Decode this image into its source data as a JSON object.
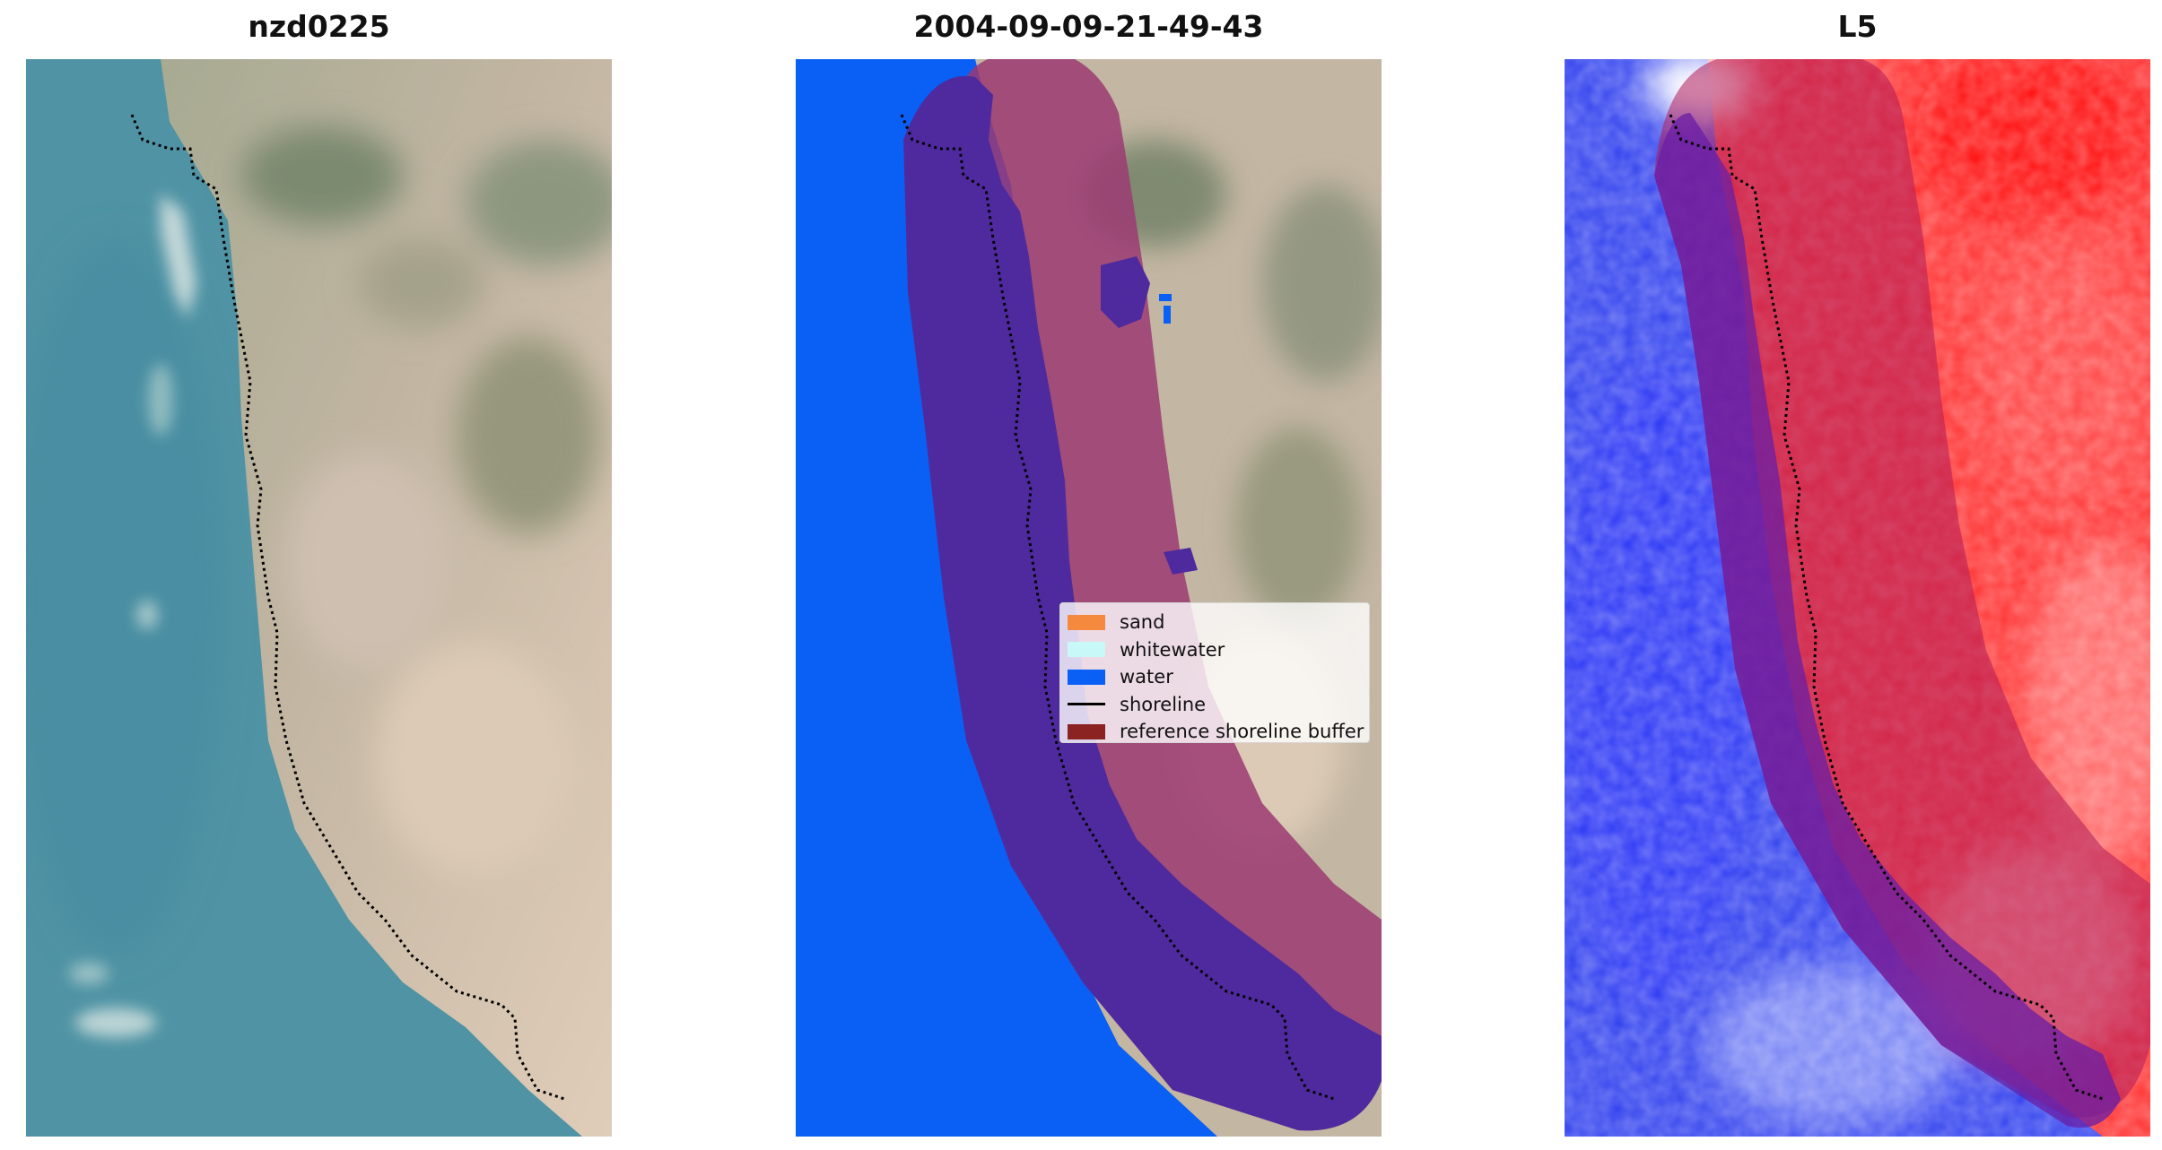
{
  "panels": [
    {
      "title": "nzd0225"
    },
    {
      "title": "2004-09-09-21-49-43"
    },
    {
      "title": "L5"
    }
  ],
  "legend": {
    "items": [
      {
        "label": "sand",
        "color": "#f58a3f",
        "kind": "patch"
      },
      {
        "label": "whitewater",
        "color": "#c8f8f8",
        "kind": "patch"
      },
      {
        "label": "water",
        "color": "#0a5ff5",
        "kind": "patch"
      },
      {
        "label": "shoreline",
        "color": "#000000",
        "kind": "line"
      },
      {
        "label": "reference shoreline buffer",
        "color": "#8b2323",
        "kind": "patch"
      }
    ]
  },
  "colors": {
    "sea": "#4f95a6",
    "land": "#c6b8a4",
    "water_class": "#0a5ff5",
    "buffer_on_land": "#9a4a7c",
    "buffer_on_water": "#4f2a9e",
    "index_positive": "#ff1a1a",
    "index_negative": "#2030f0"
  }
}
